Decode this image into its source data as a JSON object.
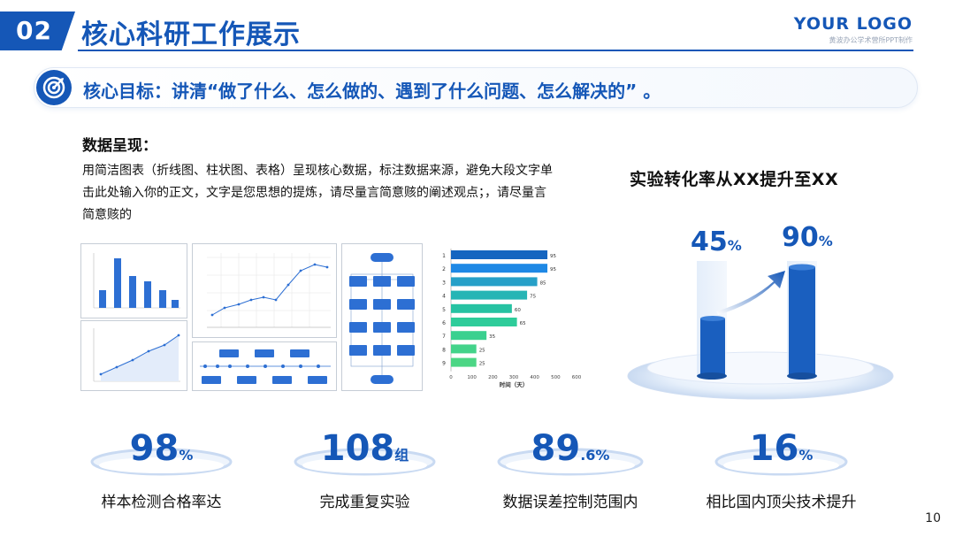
{
  "header": {
    "section_number": "02",
    "title": "核心科研工作展示",
    "logo": "YOUR LOGO",
    "logo_subtitle": "黄波办公学术营所PPT制作"
  },
  "goal": {
    "text": "核心目标：讲清“做了什么、怎么做的、遇到了什么问题、怎么解决的” 。"
  },
  "data_section": {
    "title": "数据呈现：",
    "paragraph": "用简洁图表（折线图、柱状图、表格）呈现核心数据，标注数据来源，避免大段文字单击此处输入你的正文，文字是您思想的提炼，请尽量言简意赅的阐述观点；，请尽量言简意赅的"
  },
  "feature": {
    "title": "实验转化率从XX提升至XX",
    "from_value": "45",
    "from_unit": "%",
    "to_value": "90",
    "to_unit": "%",
    "colors": {
      "primary": "#1557b7",
      "light": "#cfe0f6"
    }
  },
  "stats": [
    {
      "value": "98",
      "unit": "%",
      "label": "样本检测合格率达"
    },
    {
      "value": "108",
      "unit": "组",
      "label": "完成重复实验"
    },
    {
      "value": "89",
      "unit": ".6%",
      "label": "数据误差控制范围内"
    },
    {
      "value": "16",
      "unit": "%",
      "label": "相比国内顶尖技术提升"
    }
  ],
  "page_number": "10",
  "chart_data": [
    {
      "type": "bar",
      "categories": [
        "1",
        "2",
        "3",
        "4",
        "5",
        "6",
        "7",
        "8",
        "9"
      ],
      "values": [
        95,
        95,
        85,
        75,
        60,
        65,
        35,
        25,
        25
      ],
      "xlabel": "时间（天）",
      "xlim": [
        0,
        600
      ],
      "x_ticks": [
        "0",
        "100",
        "200",
        "300",
        "400",
        "500",
        "600"
      ],
      "orientation": "horizontal",
      "colors": [
        "#1565c0",
        "#1e88e5",
        "#26a0c8",
        "#26b5b5",
        "#26c2a2",
        "#2ecc9a",
        "#3ad08f",
        "#43d38a",
        "#4cd685"
      ]
    }
  ]
}
